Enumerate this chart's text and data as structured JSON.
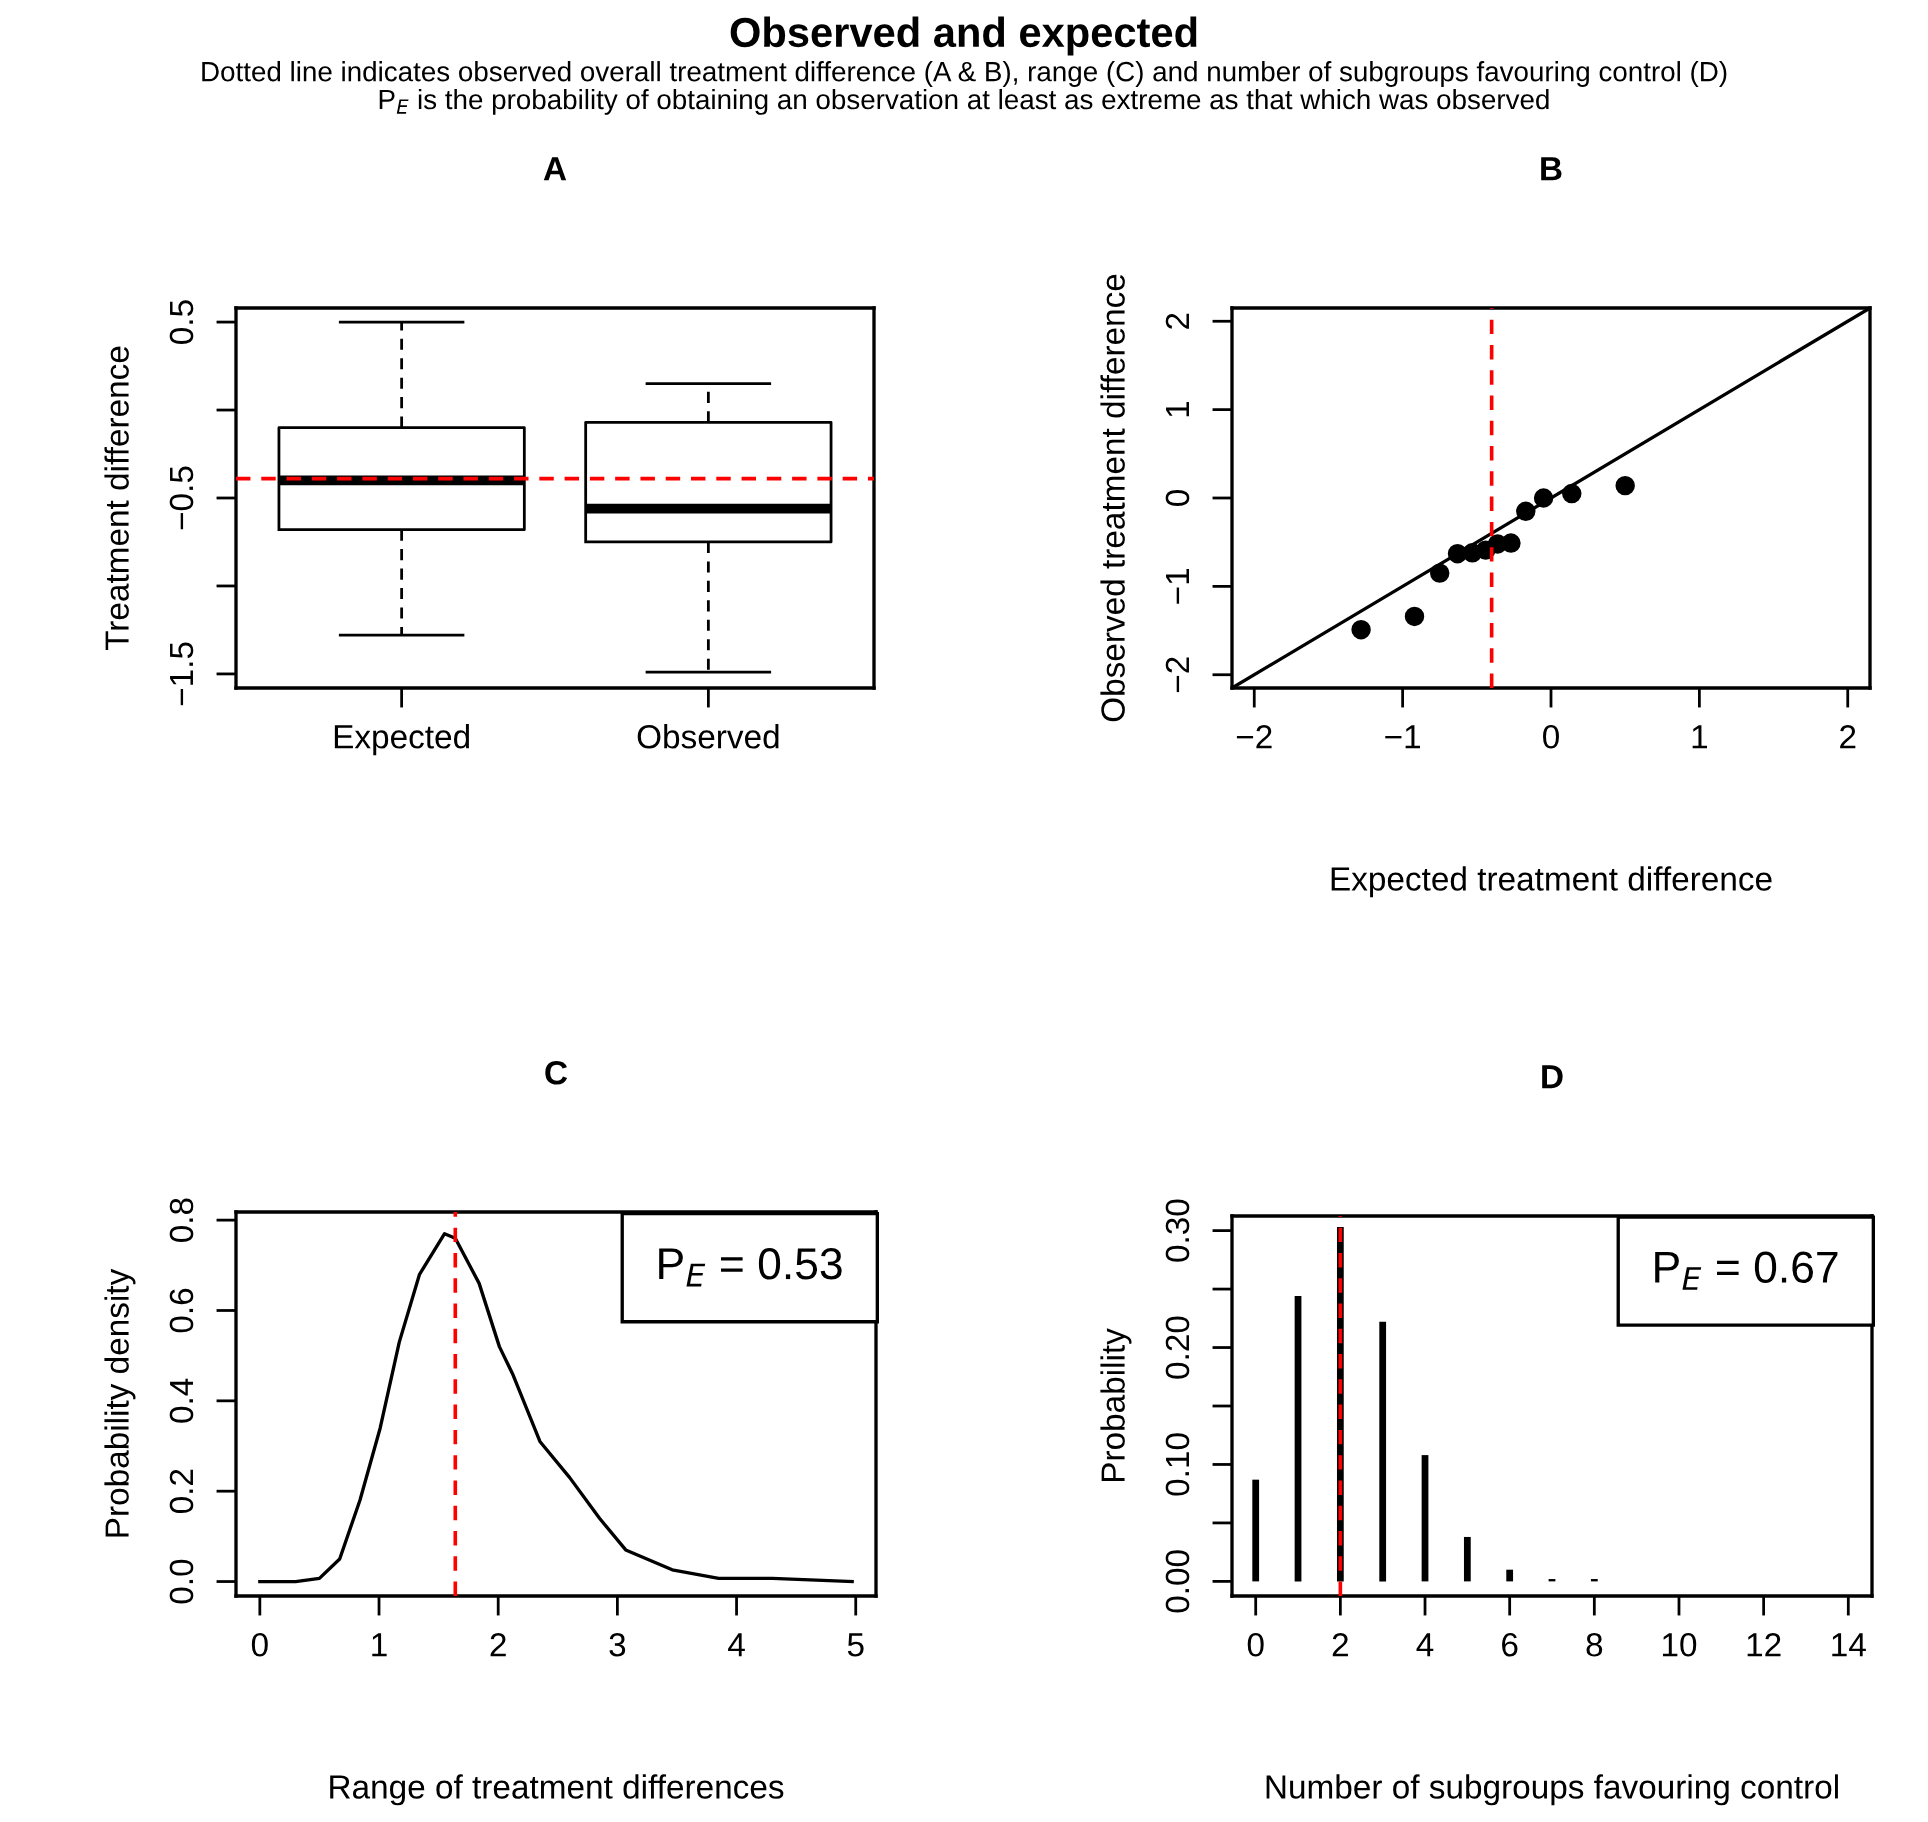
{
  "chart_data": [
    {
      "type": "box",
      "title": "A",
      "ylabel": "Treatment difference",
      "categories": [
        "Expected",
        "Observed"
      ],
      "boxes": [
        {
          "low": -1.28,
          "q1": -0.68,
          "median": -0.4,
          "q3": -0.1,
          "high": 0.5
        },
        {
          "low": -1.49,
          "q1": -0.75,
          "median": -0.56,
          "q3": -0.07,
          "high": 0.15
        }
      ],
      "ylim": [
        -1.58,
        0.58
      ],
      "yticks": [
        {
          "value": 0.5,
          "label": "0.5"
        },
        {
          "value": 0,
          "label": null
        },
        {
          "value": -0.5,
          "label": "−0.5"
        },
        {
          "value": -1,
          "label": null
        },
        {
          "value": -1.5,
          "label": "−1.5"
        }
      ],
      "ref_lines": [
        {
          "axis": "y",
          "value": -0.39,
          "color": "#ff0000",
          "line_style": "dashed"
        }
      ],
      "annotations": [
        "Observed and expected",
        "Dotted line indicates observed overall treatment difference (A & B), range (C) and number of subgroups favouring control (D)",
        "P$_{E}$ is the probability of obtaining an observation at least as extreme as that which was observed"
      ]
    },
    {
      "type": "scatter",
      "title": "B",
      "xlabel": "Expected treatment difference",
      "ylabel": "Observed treatment difference",
      "series": [
        {
          "type": "scatter",
          "marker": "circle",
          "color": "#000000",
          "x": [
            -1.28,
            -0.92,
            -0.75,
            -0.63,
            -0.53,
            -0.44,
            -0.36,
            -0.27,
            -0.17,
            -0.05,
            0.14,
            0.5
          ],
          "values": [
            -1.49,
            -1.34,
            -0.85,
            -0.63,
            -0.62,
            -0.59,
            -0.52,
            -0.51,
            -0.15,
            0.0,
            0.05,
            0.14
          ]
        },
        {
          "type": "line",
          "marker": "none",
          "color": "#000000",
          "x": [
            -2.15,
            2.15
          ],
          "values": [
            -2.15,
            2.15
          ]
        }
      ],
      "xlim": [
        -2.15,
        2.15
      ],
      "ylim": [
        -2.15,
        2.15
      ],
      "xticks": [
        {
          "value": -2,
          "label": "−2"
        },
        {
          "value": -1,
          "label": "−1"
        },
        0,
        1,
        2
      ],
      "yticks": [
        {
          "value": -2,
          "label": "−2"
        },
        {
          "value": -1,
          "label": "−1"
        },
        0,
        1,
        2
      ],
      "ref_lines": [
        {
          "axis": "x",
          "value": -0.4,
          "color": "#ff0000",
          "line_style": "dashed"
        }
      ]
    },
    {
      "type": "line",
      "title": "C",
      "xlabel": "Range of treatment differences",
      "ylabel": "Probability density",
      "series": [
        {
          "color": "#000000",
          "x": [
            0,
            0.3,
            0.5,
            0.67,
            0.84,
            1.01,
            1.17,
            1.34,
            1.55,
            1.64,
            1.84,
            2.01,
            2.12,
            2.35,
            2.6,
            2.85,
            3.07,
            3.46,
            3.85,
            4.3,
            4.97
          ],
          "values": [
            0,
            0,
            0.007,
            0.05,
            0.18,
            0.34,
            0.53,
            0.68,
            0.77,
            0.76,
            0.66,
            0.52,
            0.46,
            0.31,
            0.23,
            0.14,
            0.07,
            0.026,
            0.007,
            0.007,
            0
          ]
        }
      ],
      "xlim": [
        -0.2,
        5.17
      ],
      "ylim": [
        -0.032,
        0.818
      ],
      "xticks": [
        0,
        1,
        2,
        3,
        4,
        5
      ],
      "yticks": [
        {
          "value": 0,
          "label": "0.0"
        },
        {
          "value": 0.2,
          "label": "0.2"
        },
        {
          "value": 0.4,
          "label": "0.4"
        },
        {
          "value": 0.6,
          "label": "0.6"
        },
        {
          "value": 0.8,
          "label": "0.8"
        }
      ],
      "ref_lines": [
        {
          "axis": "x",
          "value": 1.64,
          "color": "#ff0000",
          "line_style": "dashed"
        }
      ],
      "annotations": [
        "P$_{E}$ = 0.53"
      ]
    },
    {
      "type": "bar",
      "title": "D",
      "xlabel": "Number of subgroups favouring control",
      "ylabel": "Probability",
      "series": [
        {
          "color": "#000000",
          "x": [
            0,
            1,
            2,
            3,
            4,
            5,
            6,
            7,
            8
          ],
          "values": [
            0.087,
            0.244,
            0.303,
            0.222,
            0.108,
            0.038,
            0.01,
            0.002,
            0.002
          ]
        }
      ],
      "xlim": [
        -0.56,
        14.56
      ],
      "ylim": [
        -0.0125,
        0.3125
      ],
      "xticks": [
        0,
        2,
        4,
        6,
        8,
        10,
        12,
        14
      ],
      "yticks": [
        {
          "value": 0,
          "label": "0.00"
        },
        {
          "value": 0.05,
          "label": null
        },
        {
          "value": 0.1,
          "label": "0.10"
        },
        {
          "value": 0.15,
          "label": null
        },
        {
          "value": 0.2,
          "label": "0.20"
        },
        {
          "value": 0.25,
          "label": null
        },
        {
          "value": 0.3,
          "label": "0.30"
        }
      ],
      "ref_lines": [
        {
          "axis": "x",
          "value": 2,
          "color": "#ff0000",
          "line_style": "dashed"
        }
      ],
      "annotations": [
        "P$_{E}$ = 0.67"
      ]
    }
  ]
}
